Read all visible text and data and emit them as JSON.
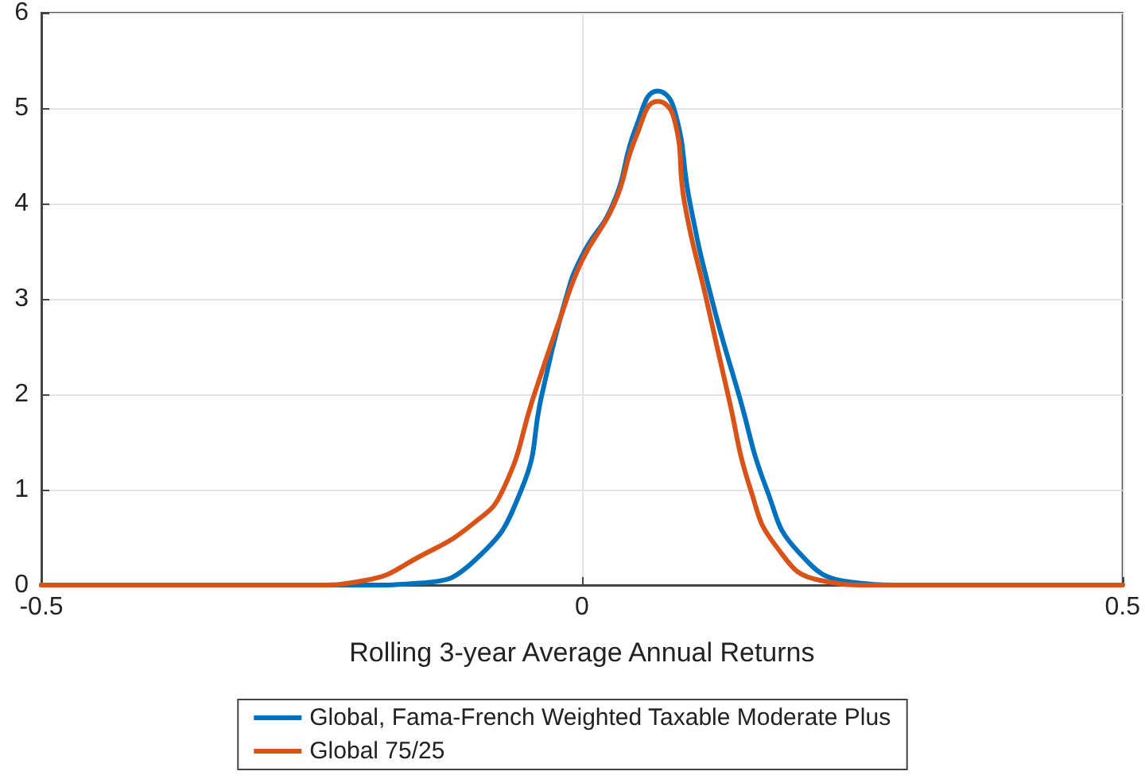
{
  "chart_data": {
    "type": "line",
    "xlabel": "Rolling 3-year Average Annual Returns",
    "xlim": [
      -0.5,
      0.5
    ],
    "xticks": [
      -0.5,
      0,
      0.5
    ],
    "ylim": [
      0,
      6
    ],
    "yticks": [
      0,
      1,
      2,
      3,
      4,
      5,
      6
    ],
    "grid": true,
    "legend": "bottom",
    "marker": "none",
    "line_style": "solid",
    "series": [
      {
        "name": "Global, Fama-French Weighted Taxable Moderate Plus",
        "color": "#0072bd",
        "x": [
          -0.5,
          -0.2,
          -0.15,
          -0.1,
          -0.056,
          -0.037,
          -0.015,
          0,
          0.029,
          0.05,
          0.07,
          0.085,
          0.1,
          0.12,
          0.145,
          0.171,
          0.2,
          0.25,
          0.3,
          0.5
        ],
        "values": [
          0,
          0,
          0.02,
          0.25,
          1,
          2,
          3,
          3.45,
          4,
          4.8,
          5.18,
          5,
          4,
          3,
          2,
          1,
          0.35,
          0.03,
          0,
          0
        ]
      },
      {
        "name": "Global 75/25",
        "color": "#d95319",
        "x": [
          -0.5,
          -0.25,
          -0.2,
          -0.15,
          -0.1,
          -0.073,
          -0.044,
          -0.02,
          0,
          0.03,
          0.05,
          0.07,
          0.085,
          0.095,
          0.115,
          0.135,
          0.156,
          0.18,
          0.22,
          0.27,
          0.5
        ],
        "values": [
          0,
          0,
          0.05,
          0.3,
          0.65,
          1,
          2,
          2.8,
          3.4,
          4,
          4.7,
          5.07,
          4.9,
          4,
          3,
          2,
          1,
          0.4,
          0.05,
          0,
          0
        ]
      }
    ]
  }
}
